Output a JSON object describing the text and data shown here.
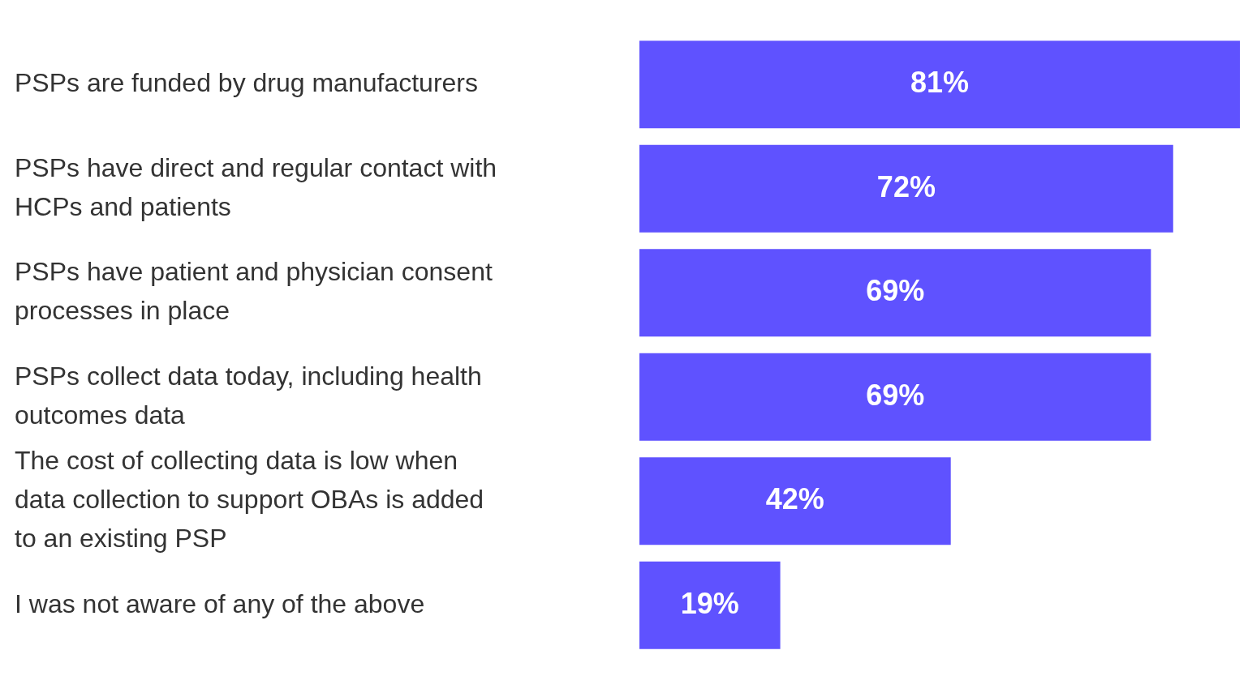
{
  "chart_data": {
    "type": "bar",
    "orientation": "horizontal",
    "categories": [
      "PSPs are funded by drug manufacturers",
      "PSPs have direct and regular contact with HCPs and patients",
      "PSPs have patient and physician consent processes in place",
      "PSPs collect data today, including health outcomes data",
      "The cost of collecting data is low when data collection to support OBAs is added to an existing PSP",
      "I was not aware of any of the above"
    ],
    "values": [
      81,
      72,
      69,
      69,
      42,
      19
    ],
    "value_labels": [
      "81%",
      "72%",
      "69%",
      "69%",
      "42%",
      "19%"
    ],
    "color": "#5f52ff",
    "tick_labels": "y"
  }
}
